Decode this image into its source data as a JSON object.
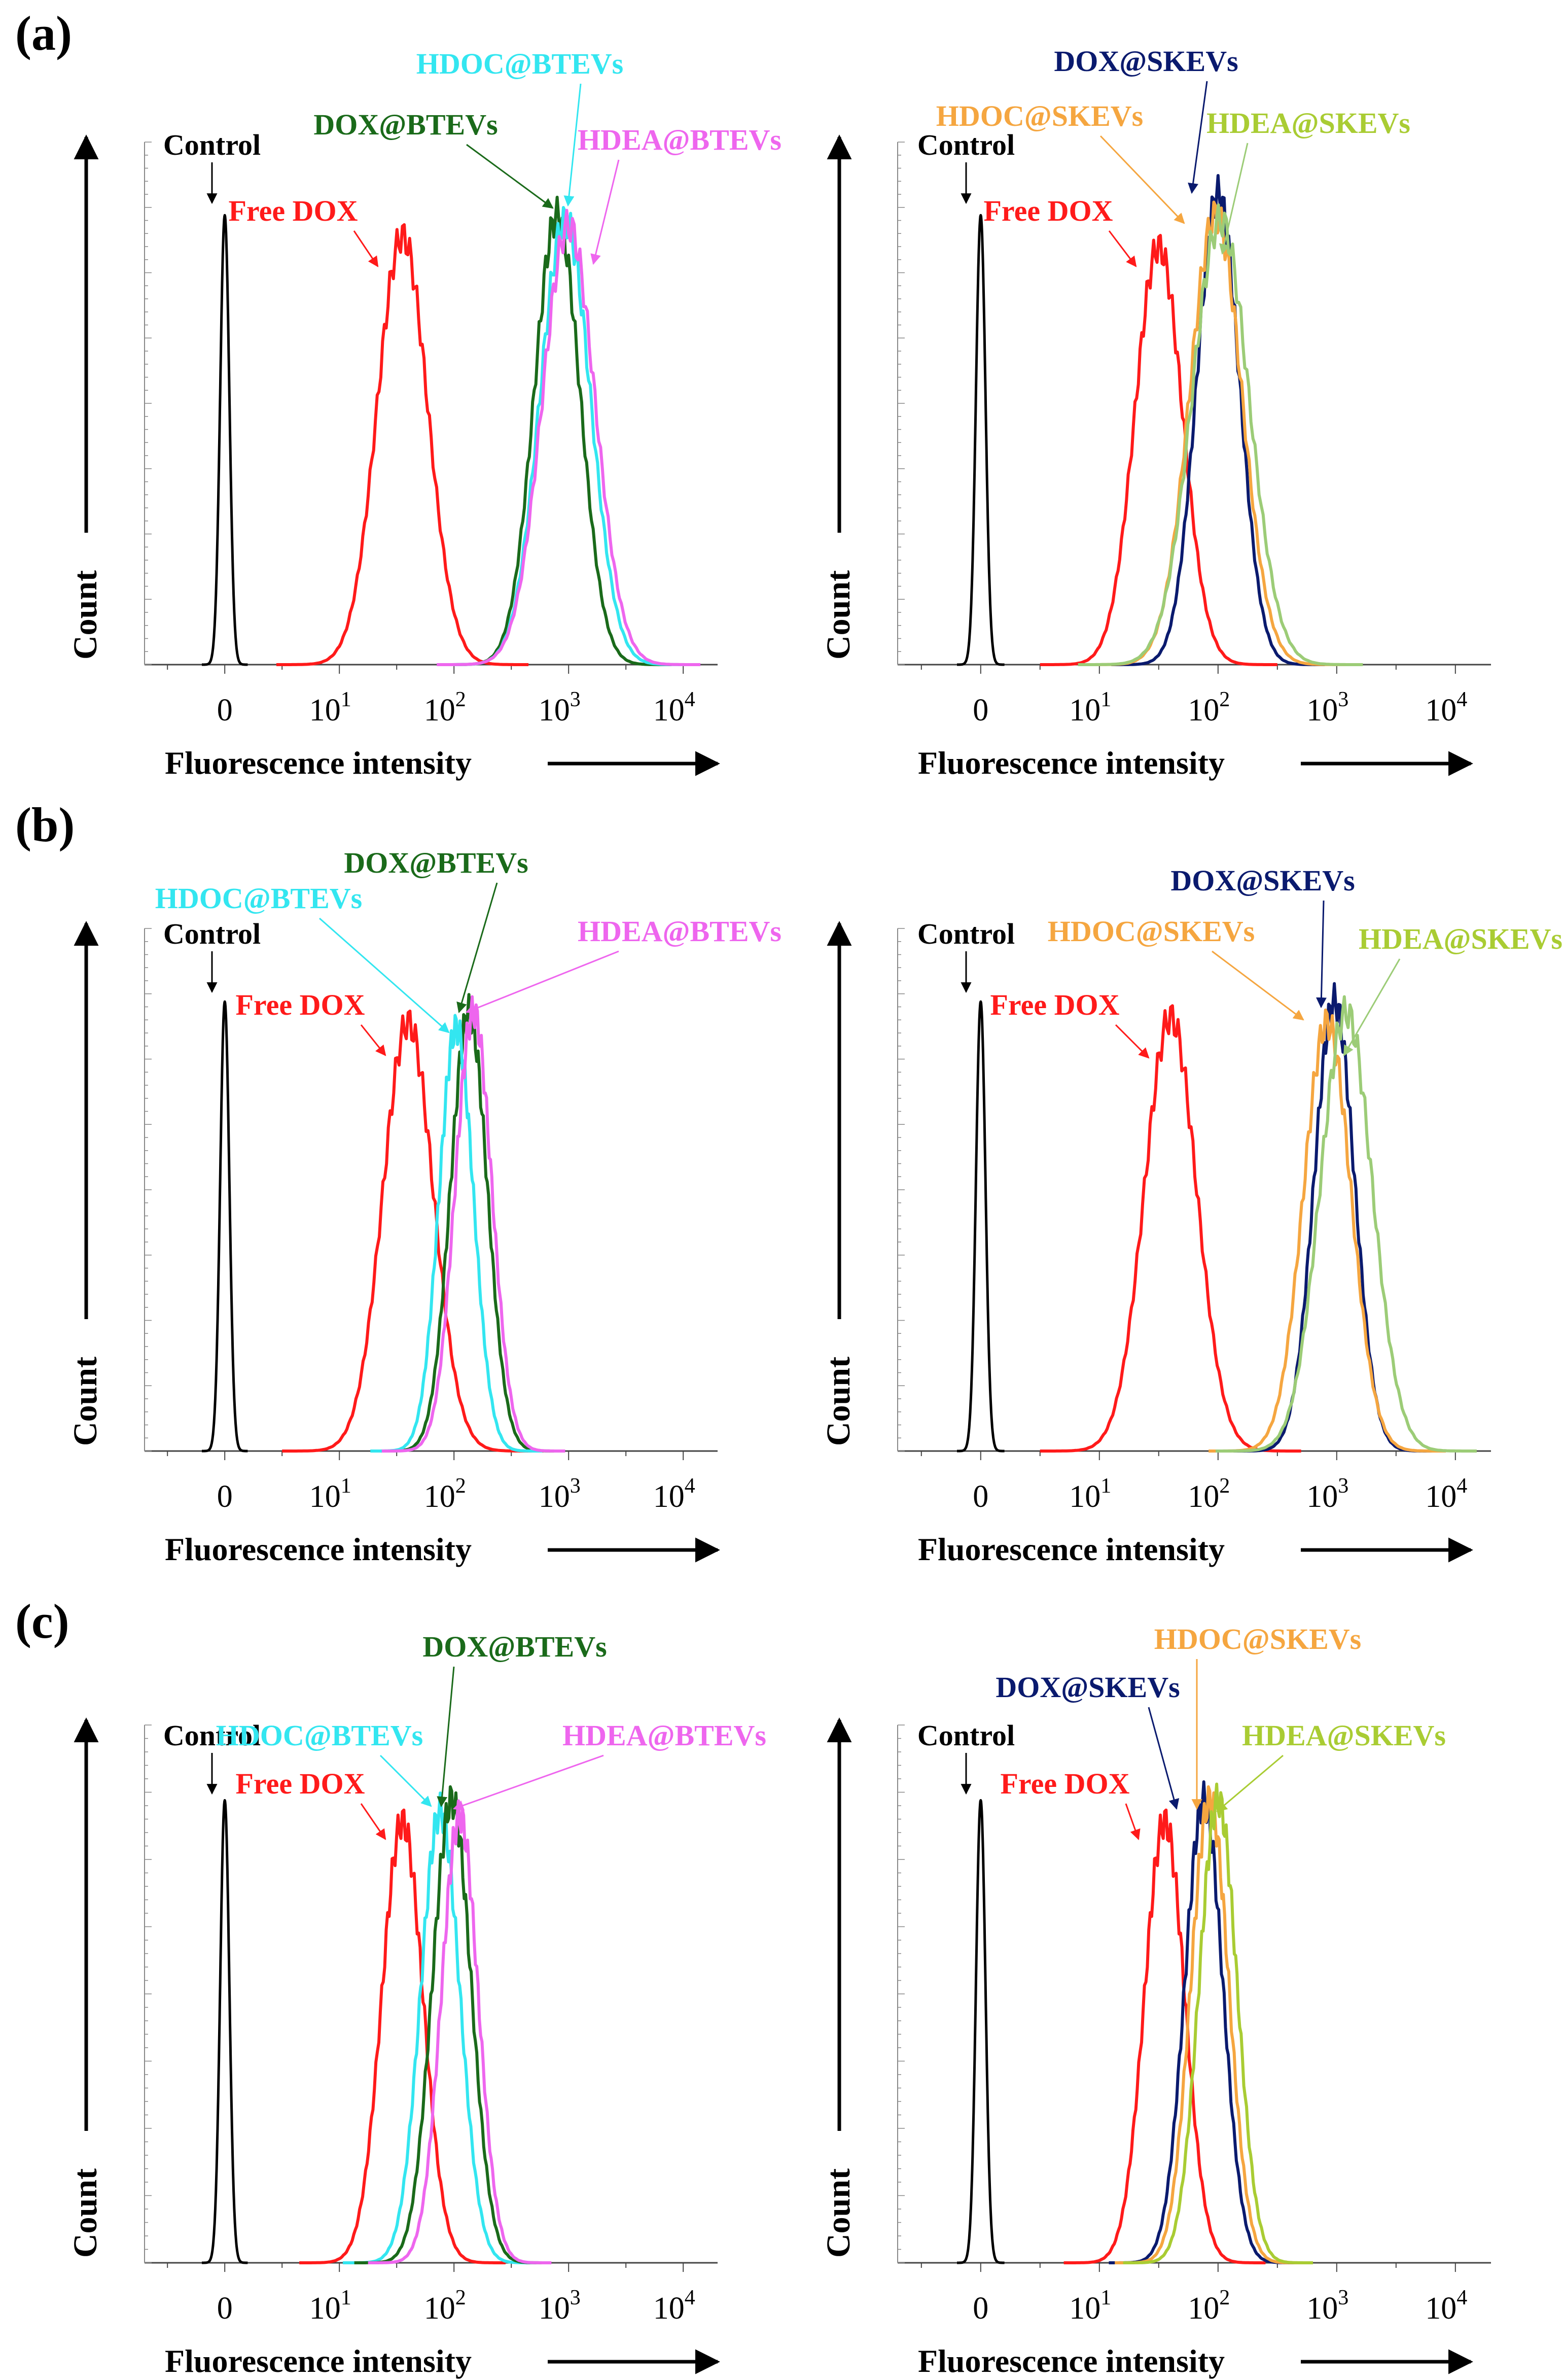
{
  "figure": {
    "panels": [
      "(a)",
      "(b)",
      "(c)"
    ]
  },
  "axis_text": {
    "xlabel": "Fluorescence intensity",
    "ylabel": "Count",
    "ticks": [
      "0",
      "10",
      "10",
      "10",
      "10"
    ],
    "tick_exp": [
      "",
      "1",
      "2",
      "3",
      "4"
    ]
  },
  "colors": {
    "Control": "#000000",
    "Free DOX": "#ff1a1a",
    "DOX@BTEVs": "#1a6a1a",
    "HDOC@BTEVs": "#33e6f0",
    "HDEA@BTEVs": "#ee66ee",
    "DOX@SKEVs": "#0a1a6e",
    "HDOC@SKEVs": "#f5a640",
    "HDEA@SKEVs": "#a9cc33",
    "HDEA@SKEVs_line": "#9ccc77"
  },
  "chart_data": [
    {
      "id": "a-left",
      "type": "line",
      "panel": "(a)",
      "title": "",
      "xlabel": "Fluorescence intensity",
      "ylabel": "Count",
      "xscale": "log-with-zero",
      "xlim": [
        -0.7,
        4.3
      ],
      "series": [
        {
          "name": "Control",
          "label": "Control",
          "peak": 0.0,
          "width": 0.04,
          "height": 0.86,
          "color_key": "Control"
        },
        {
          "name": "Free DOX",
          "label": "Free DOX",
          "peak": 1.55,
          "width": 0.22,
          "height": 0.82,
          "color_key": "Free DOX"
        },
        {
          "name": "DOX@BTEVs",
          "label": "DOX@BTEVs",
          "peak": 2.9,
          "width": 0.2,
          "height": 0.86,
          "color_key": "DOX@BTEVs"
        },
        {
          "name": "HDOC@BTEVs",
          "label": "HDOC@BTEVs",
          "peak": 2.97,
          "width": 0.22,
          "height": 0.85,
          "color_key": "HDOC@BTEVs"
        },
        {
          "name": "HDEA@BTEVs",
          "label": "HDEA@BTEVs",
          "peak": 3.0,
          "width": 0.23,
          "height": 0.84,
          "color_key": "HDEA@BTEVs"
        }
      ]
    },
    {
      "id": "a-right",
      "type": "line",
      "panel": "(a)",
      "title": "",
      "xlabel": "Fluorescence intensity",
      "ylabel": "Count",
      "xscale": "log-with-zero",
      "xlim": [
        -0.7,
        4.3
      ],
      "series": [
        {
          "name": "Control",
          "label": "Control",
          "peak": 0.0,
          "width": 0.04,
          "height": 0.86,
          "color_key": "Control"
        },
        {
          "name": "Free DOX",
          "label": "Free DOX",
          "peak": 1.5,
          "width": 0.2,
          "height": 0.8,
          "color_key": "Free DOX"
        },
        {
          "name": "DOX@SKEVs",
          "label": "DOX@SKEVs",
          "peak": 2.0,
          "width": 0.18,
          "height": 0.9,
          "color_key": "DOX@SKEVs"
        },
        {
          "name": "HDOC@SKEVs",
          "label": "HDOC@SKEVs",
          "peak": 1.98,
          "width": 0.22,
          "height": 0.86,
          "color_key": "HDOC@SKEVs"
        },
        {
          "name": "HDEA@SKEVs",
          "label": "HDEA@SKEVs",
          "peak": 2.02,
          "width": 0.24,
          "height": 0.85,
          "color_key": "HDEA@SKEVs_line"
        }
      ]
    },
    {
      "id": "b-left",
      "type": "line",
      "panel": "(b)",
      "title": "",
      "xlabel": "Fluorescence intensity",
      "ylabel": "Count",
      "xscale": "log-with-zero",
      "xlim": [
        -0.7,
        4.3
      ],
      "series": [
        {
          "name": "Control",
          "label": "Control",
          "peak": 0.0,
          "width": 0.04,
          "height": 0.86,
          "color_key": "Control"
        },
        {
          "name": "Free DOX",
          "label": "Free DOX",
          "peak": 1.6,
          "width": 0.22,
          "height": 0.82,
          "color_key": "Free DOX"
        },
        {
          "name": "DOX@BTEVs",
          "label": "DOX@BTEVs",
          "peak": 2.13,
          "width": 0.16,
          "height": 0.84,
          "color_key": "DOX@BTEVs"
        },
        {
          "name": "HDOC@BTEVs",
          "label": "HDOC@BTEVs",
          "peak": 2.02,
          "width": 0.15,
          "height": 0.81,
          "color_key": "HDOC@BTEVs"
        },
        {
          "name": "HDEA@BTEVs",
          "label": "HDEA@BTEVs",
          "peak": 2.17,
          "width": 0.16,
          "height": 0.84,
          "color_key": "HDEA@BTEVs"
        }
      ]
    },
    {
      "id": "b-right",
      "type": "line",
      "panel": "(b)",
      "title": "",
      "xlabel": "Fluorescence intensity",
      "ylabel": "Count",
      "xscale": "log-with-zero",
      "xlim": [
        -0.7,
        4.3
      ],
      "series": [
        {
          "name": "Control",
          "label": "Control",
          "peak": 0.0,
          "width": 0.04,
          "height": 0.86,
          "color_key": "Control"
        },
        {
          "name": "Free DOX",
          "label": "Free DOX",
          "peak": 1.6,
          "width": 0.22,
          "height": 0.83,
          "color_key": "Free DOX"
        },
        {
          "name": "DOX@SKEVs",
          "label": "DOX@SKEVs",
          "peak": 2.98,
          "width": 0.17,
          "height": 0.86,
          "color_key": "DOX@SKEVs"
        },
        {
          "name": "HDOC@SKEVs",
          "label": "HDOC@SKEVs",
          "peak": 2.92,
          "width": 0.2,
          "height": 0.82,
          "color_key": "HDOC@SKEVs"
        },
        {
          "name": "HDEA@SKEVs",
          "label": "HDEA@SKEVs",
          "peak": 3.08,
          "width": 0.22,
          "height": 0.84,
          "color_key": "HDEA@SKEVs_line"
        }
      ]
    },
    {
      "id": "c-left",
      "type": "line",
      "panel": "(c)",
      "title": "",
      "xlabel": "Fluorescence intensity",
      "ylabel": "Count",
      "xscale": "log-with-zero",
      "xlim": [
        -0.7,
        4.3
      ],
      "series": [
        {
          "name": "Control",
          "label": "Control",
          "peak": 0.0,
          "width": 0.04,
          "height": 0.86,
          "color_key": "Control"
        },
        {
          "name": "Free DOX",
          "label": "Free DOX",
          "peak": 1.55,
          "width": 0.18,
          "height": 0.82,
          "color_key": "Free DOX"
        },
        {
          "name": "HDOC@BTEVs",
          "label": "HDOC@BTEVs",
          "peak": 1.88,
          "width": 0.17,
          "height": 0.84,
          "color_key": "HDOC@BTEVs"
        },
        {
          "name": "DOX@BTEVs",
          "label": "DOX@BTEVs",
          "peak": 1.98,
          "width": 0.17,
          "height": 0.86,
          "color_key": "DOX@BTEVs"
        },
        {
          "name": "HDEA@BTEVs",
          "label": "HDEA@BTEVs",
          "peak": 2.05,
          "width": 0.16,
          "height": 0.83,
          "color_key": "HDEA@BTEVs"
        }
      ]
    },
    {
      "id": "c-right",
      "type": "line",
      "panel": "(c)",
      "title": "",
      "xlabel": "Fluorescence intensity",
      "ylabel": "Count",
      "xscale": "log-with-zero",
      "xlim": [
        -0.7,
        4.3
      ],
      "series": [
        {
          "name": "Control",
          "label": "Control",
          "peak": 0.0,
          "width": 0.04,
          "height": 0.86,
          "color_key": "Control"
        },
        {
          "name": "Free DOX",
          "label": "Free DOX",
          "peak": 1.55,
          "width": 0.17,
          "height": 0.82,
          "color_key": "Free DOX"
        },
        {
          "name": "DOX@SKEVs",
          "label": "DOX@SKEVs",
          "peak": 1.88,
          "width": 0.16,
          "height": 0.86,
          "color_key": "DOX@SKEVs"
        },
        {
          "name": "HDOC@SKEVs",
          "label": "HDOC@SKEVs",
          "peak": 1.93,
          "width": 0.16,
          "height": 0.86,
          "color_key": "HDOC@SKEVs"
        },
        {
          "name": "HDEA@SKEVs",
          "label": "HDEA@SKEVs",
          "peak": 2.0,
          "width": 0.16,
          "height": 0.86,
          "color_key": "HDEA@SKEVs"
        }
      ]
    }
  ]
}
